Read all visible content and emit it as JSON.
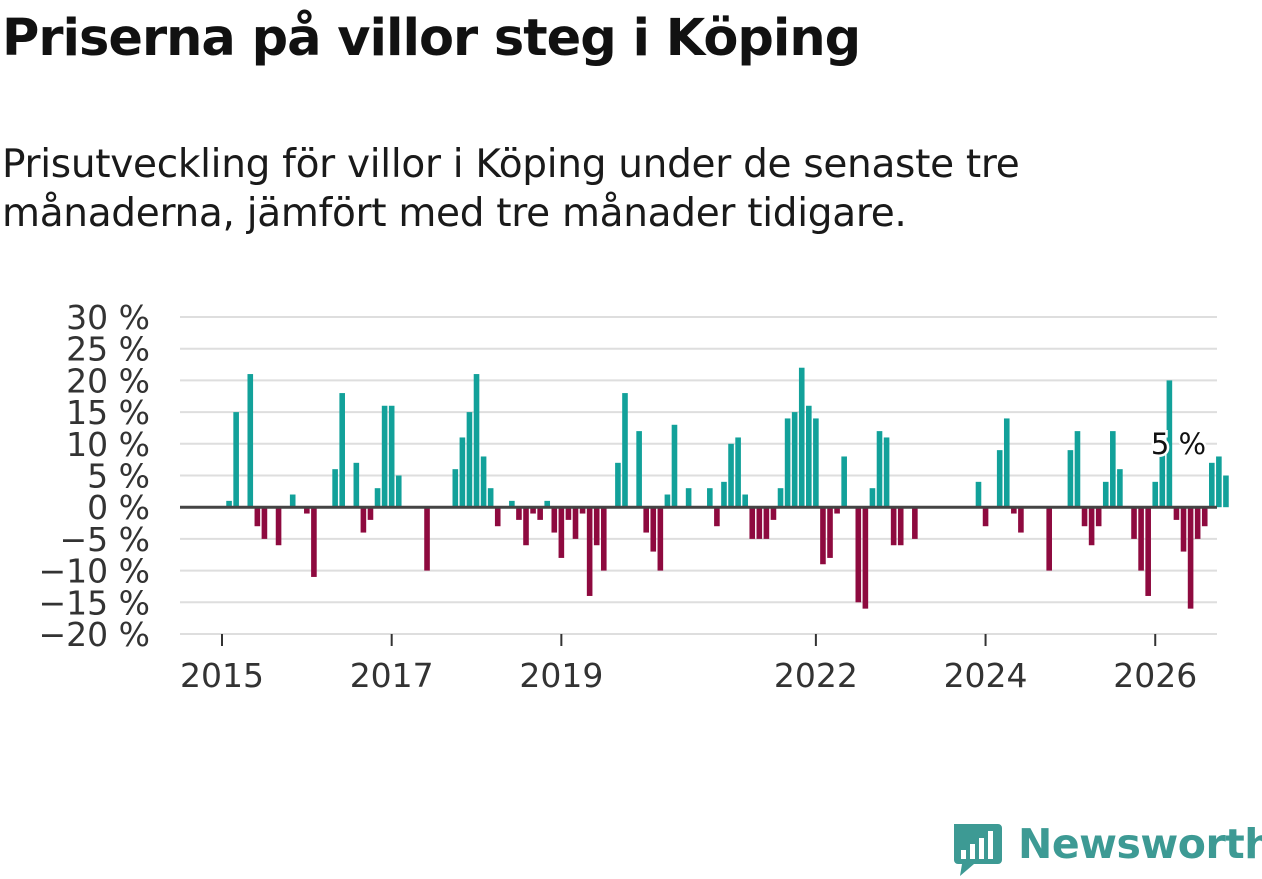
{
  "header": {
    "title": "Priserna på villor steg i Köping",
    "subtitle": "Prisutveckling för villor i Köping under de senaste tre månaderna, jämfört med tre månader tidigare."
  },
  "brand": {
    "name": "Newsworthy",
    "color": "#3d9a94",
    "icon": "newsworthy-chart-icon"
  },
  "colors": {
    "positive": "#12a19a",
    "negative": "#8e0a3f",
    "grid": "#dedede",
    "zero": "#444444"
  },
  "chart_data": {
    "type": "bar",
    "title": "Priserna på villor steg i Köping",
    "xlabel": "",
    "ylabel": "",
    "ylim": [
      -20,
      30
    ],
    "yticks": [
      30,
      25,
      20,
      15,
      10,
      5,
      0,
      -5,
      -10,
      -15,
      -20
    ],
    "ytick_labels": [
      "30 %",
      "25 %",
      "20 %",
      "15 %",
      "10 %",
      "5 %",
      "0 %",
      "−5 %",
      "−10 %",
      "−15 %",
      "−20 %"
    ],
    "xticks": [
      {
        "label": "2015",
        "month_index": 0
      },
      {
        "label": "2017",
        "month_index": 24
      },
      {
        "label": "2019",
        "month_index": 48
      },
      {
        "label": "2022",
        "month_index": 84
      },
      {
        "label": "2024",
        "month_index": 108
      },
      {
        "label": "2026",
        "month_index": 132
      }
    ],
    "annotation": {
      "text": "5 %",
      "month_index": 135,
      "value": 5
    },
    "start": "2015-01",
    "values": [
      0,
      1,
      15,
      0,
      21,
      -3,
      -5,
      0,
      -6,
      0,
      2,
      0,
      -1,
      -11,
      0,
      0,
      6,
      18,
      0,
      7,
      -4,
      -2,
      3,
      16,
      16,
      5,
      0,
      0,
      0,
      -10,
      0,
      0,
      0,
      6,
      11,
      15,
      21,
      8,
      3,
      -3,
      0,
      1,
      -2,
      -6,
      -1,
      -2,
      1,
      -4,
      -8,
      -2,
      -5,
      -1,
      -14,
      -6,
      -10,
      0,
      7,
      18,
      0,
      12,
      -4,
      -7,
      -10,
      2,
      13,
      0,
      3,
      0,
      0,
      3,
      -3,
      4,
      10,
      11,
      2,
      -5,
      -5,
      -5,
      -2,
      3,
      14,
      15,
      22,
      16,
      14,
      -9,
      -8,
      -1,
      8,
      0,
      -15,
      -16,
      3,
      12,
      11,
      -6,
      -6,
      0,
      -5,
      0,
      0,
      0,
      0,
      0,
      0,
      0,
      0,
      4,
      -3,
      0,
      9,
      14,
      -1,
      -4,
      0,
      0,
      0,
      -10,
      0,
      0,
      9,
      12,
      -3,
      -6,
      -3,
      4,
      12,
      6,
      0,
      -5,
      -10,
      -14,
      4,
      9,
      20,
      -2,
      -7,
      -16,
      -5,
      -3,
      7,
      8,
      5
    ]
  }
}
